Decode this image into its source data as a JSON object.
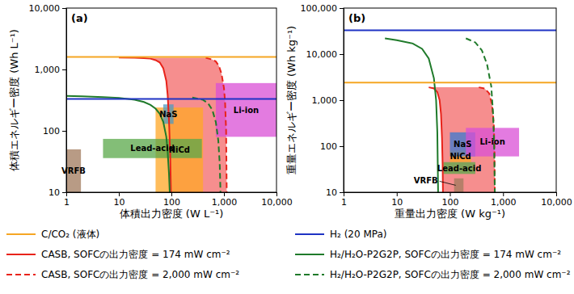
{
  "chart_data": [
    {
      "type": "line",
      "title": "(a)",
      "log": true,
      "grid": false,
      "legend": "bottom",
      "x_label": "体積出力密度 (W L⁻¹)",
      "y_label": "体積エネルギー密度 (Wh L⁻¹)",
      "xlim": [
        1,
        10000
      ],
      "ylim": [
        10,
        10000
      ],
      "xticks": [
        1,
        10,
        100,
        {
          "value": 1000,
          "label": "1,000"
        },
        {
          "value": 10000,
          "label": "10,000"
        }
      ],
      "yticks": [
        10,
        100,
        {
          "value": 1000,
          "label": "1,000"
        },
        {
          "value": 10000,
          "label": "10,000"
        }
      ],
      "series": [
        {
          "name": "C/CO₂ (液体)",
          "type": "hline",
          "color": "#f5a623",
          "line_style": "solid",
          "values": [
            1600
          ]
        },
        {
          "name": "H₂ (20 MPa)",
          "type": "hline",
          "color": "#1f33c4",
          "line_style": "solid",
          "values": [
            330
          ]
        },
        {
          "name": "CASB, SOFCの出力密度 = 174 mW cm⁻²",
          "type": "line",
          "color": "#e8231a",
          "line_style": "solid",
          "x": [
            10,
            20,
            30,
            40,
            50,
            60,
            70,
            80,
            85,
            90,
            95,
            98
          ],
          "values": [
            1560,
            1550,
            1530,
            1500,
            1420,
            1300,
            1050,
            650,
            380,
            150,
            40,
            10
          ]
        },
        {
          "name": "H₂/H₂O-P2G2P, SOFCの出力密度 = 174 mW cm⁻²",
          "type": "line",
          "color": "#1f7a2a",
          "line_style": "solid",
          "x": [
            1,
            2,
            5,
            10,
            20,
            30,
            40,
            50,
            60,
            70,
            80,
            85,
            90,
            93
          ],
          "values": [
            370,
            365,
            355,
            345,
            320,
            295,
            265,
            230,
            190,
            140,
            80,
            45,
            20,
            10
          ]
        },
        {
          "name": "CASB, SOFCの出力密度 = 2,000 mW cm⁻²",
          "type": "line",
          "color": "#e8231a",
          "line_style": "dashed",
          "x": [
            450,
            600,
            700,
            800,
            900,
            1000,
            1050,
            1100,
            1130
          ],
          "values": [
            1550,
            1450,
            1350,
            1150,
            850,
            500,
            300,
            100,
            10
          ]
        },
        {
          "name": "H₂/H₂O-P2G2P, SOFCの出力密度 = 2,000 mW cm⁻²",
          "type": "line",
          "color": "#1f7a2a",
          "line_style": "dashed",
          "x": [
            250,
            400,
            500,
            600,
            700,
            780,
            830,
            860
          ],
          "values": [
            350,
            320,
            280,
            220,
            140,
            70,
            30,
            10
          ]
        },
        {
          "type": "area",
          "color": "#f47a7a",
          "x": [
            40,
            450,
            600,
            700,
            800,
            900,
            1000,
            1050,
            1100,
            1130,
            98,
            95,
            90,
            85,
            80,
            70,
            60,
            50,
            40
          ],
          "values": [
            1550,
            1550,
            1450,
            1350,
            1150,
            850,
            500,
            300,
            100,
            10,
            10,
            40,
            150,
            380,
            650,
            1050,
            1300,
            1420,
            1500
          ]
        },
        {
          "name": "VRFB",
          "type": "rect",
          "color": "#a07a5c",
          "x": [
            1,
            1.9
          ],
          "values": [
            10,
            50
          ]
        },
        {
          "name": "NiCd",
          "type": "rect",
          "color": "#ffa726",
          "x": [
            50,
            400
          ],
          "values": [
            10,
            240
          ]
        },
        {
          "name": "Lead-acid",
          "type": "rect",
          "color": "#5aa84a",
          "x": [
            5,
            380
          ],
          "values": [
            36,
            74
          ]
        },
        {
          "name": "NaS",
          "type": "rect",
          "color": "#4f9ac0",
          "x": [
            70,
            110
          ],
          "values": [
            130,
            270
          ]
        },
        {
          "name": "Li-ion",
          "type": "rect",
          "color": "#d94fd6",
          "x": [
            700,
            10000
          ],
          "values": [
            80,
            600
          ]
        }
      ]
    },
    {
      "type": "line",
      "title": "(b)",
      "log": true,
      "grid": false,
      "x_label": "重量出力密度 (W kg⁻¹)",
      "y_label": "重量エネルギー密度 (Wh kg⁻¹)",
      "xlim": [
        1,
        10000
      ],
      "ylim": [
        10,
        100000
      ],
      "xticks": [
        1,
        10,
        100,
        {
          "value": 1000,
          "label": "1,000"
        },
        {
          "value": 10000,
          "label": "10,000"
        }
      ],
      "yticks": [
        10,
        100,
        {
          "value": 1000,
          "label": "1,000"
        },
        {
          "value": 10000,
          "label": "10,000"
        },
        {
          "value": 100000,
          "label": "100,000"
        }
      ],
      "series": [
        {
          "type": "hline",
          "color": "#f5a623",
          "line_style": "solid",
          "values": [
            2400
          ]
        },
        {
          "type": "hline",
          "color": "#1f33c4",
          "line_style": "solid",
          "values": [
            33000
          ]
        },
        {
          "type": "line",
          "color": "#e8231a",
          "line_style": "solid",
          "x": [
            40,
            50,
            58,
            64,
            68,
            71,
            73,
            74
          ],
          "values": [
            1900,
            1800,
            1500,
            1000,
            500,
            150,
            40,
            10
          ]
        },
        {
          "type": "line",
          "color": "#1f7a2a",
          "line_style": "solid",
          "x": [
            6,
            10,
            20,
            30,
            40,
            50,
            55,
            58,
            60
          ],
          "values": [
            22000,
            20000,
            17000,
            13000,
            8000,
            3000,
            1000,
            200,
            10
          ]
        },
        {
          "type": "line",
          "color": "#e8231a",
          "line_style": "dashed",
          "x": [
            350,
            450,
            550,
            620,
            670,
            690,
            700
          ],
          "values": [
            1900,
            1800,
            1400,
            800,
            300,
            80,
            10
          ]
        },
        {
          "type": "line",
          "color": "#1f7a2a",
          "line_style": "dashed",
          "x": [
            200,
            300,
            400,
            500,
            600,
            650,
            680,
            700
          ],
          "values": [
            22000,
            18000,
            12000,
            6000,
            2000,
            500,
            100,
            10
          ]
        },
        {
          "type": "area",
          "color": "#f47a7a",
          "x": [
            45,
            350,
            450,
            550,
            620,
            670,
            690,
            700,
            74,
            73,
            71,
            68,
            64,
            58,
            50,
            45
          ],
          "values": [
            1900,
            1900,
            1800,
            1400,
            800,
            300,
            80,
            10,
            10,
            40,
            150,
            500,
            1000,
            1500,
            1800,
            1850
          ]
        },
        {
          "name": "VRFB",
          "type": "rect",
          "color": "#a07a5c",
          "x": [
            120,
            180
          ],
          "values": [
            10,
            20
          ]
        },
        {
          "name": "NiCd",
          "type": "rect",
          "color": "#ffa726",
          "x": [
            100,
            250
          ],
          "values": [
            45,
            80
          ]
        },
        {
          "name": "Lead-acid",
          "type": "rect",
          "color": "#5aa84a",
          "x": [
            75,
            300
          ],
          "values": [
            25,
            45
          ]
        },
        {
          "name": "NaS",
          "type": "rect",
          "color": "#3b78d0",
          "x": [
            100,
            300
          ],
          "values": [
            60,
            200
          ]
        },
        {
          "name": "Li-ion",
          "type": "rect",
          "color": "#d94fd6",
          "x": [
            200,
            2000
          ],
          "values": [
            60,
            250
          ]
        }
      ]
    }
  ]
}
